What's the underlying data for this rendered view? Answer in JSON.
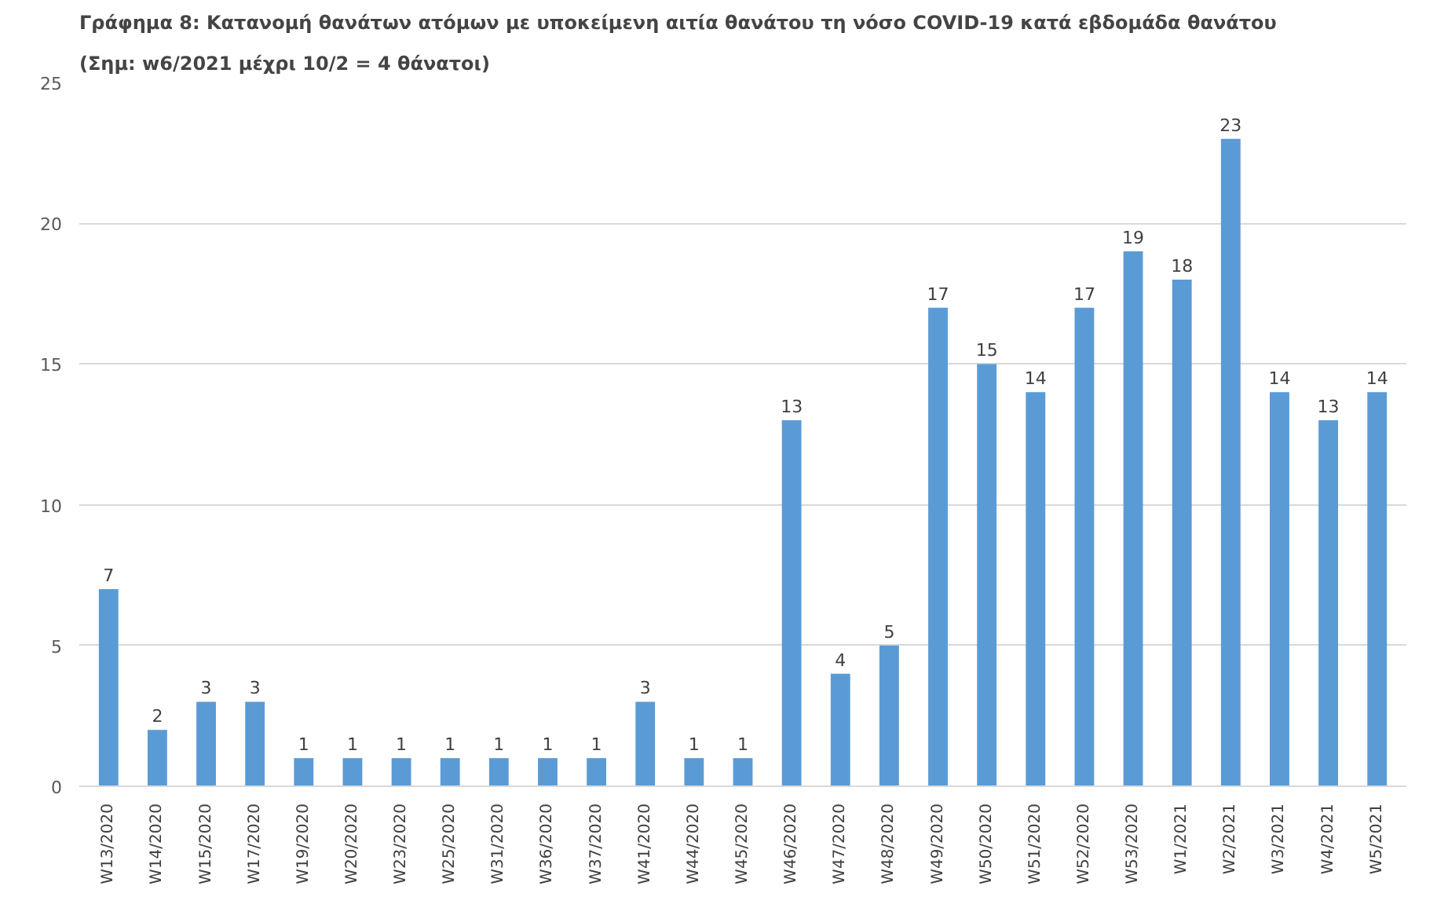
{
  "chart_data": {
    "type": "bar",
    "title": "Γράφημα 8: Κατανομή θανάτων ατόμων με υποκείμενη αιτία θανάτου τη νόσο COVID-19 κατά εβδομάδα θανάτου",
    "subtitle": "(Σημ: w6/2021 μέχρι 10/2 = 4 θάνατοι)",
    "categories": [
      "W13/2020",
      "W14/2020",
      "W15/2020",
      "W17/2020",
      "W19/2020",
      "W20/2020",
      "W23/2020",
      "W25/2020",
      "W31/2020",
      "W36/2020",
      "W37/2020",
      "W41/2020",
      "W44/2020",
      "W45/2020",
      "W46/2020",
      "W47/2020",
      "W48/2020",
      "W49/2020",
      "W50/2020",
      "W51/2020",
      "W52/2020",
      "W53/2020",
      "W1/2021",
      "W2/2021",
      "W3/2021",
      "W4/2021",
      "W5/2021"
    ],
    "values": [
      7,
      2,
      3,
      3,
      1,
      1,
      1,
      1,
      1,
      1,
      1,
      3,
      1,
      1,
      13,
      4,
      5,
      17,
      15,
      14,
      17,
      19,
      18,
      23,
      14,
      13,
      14
    ],
    "color": "#5b9bd5",
    "ylim": [
      0,
      25
    ],
    "yticks": [
      0,
      5,
      10,
      15,
      20,
      25
    ],
    "grid": "y",
    "data_labels": true
  }
}
